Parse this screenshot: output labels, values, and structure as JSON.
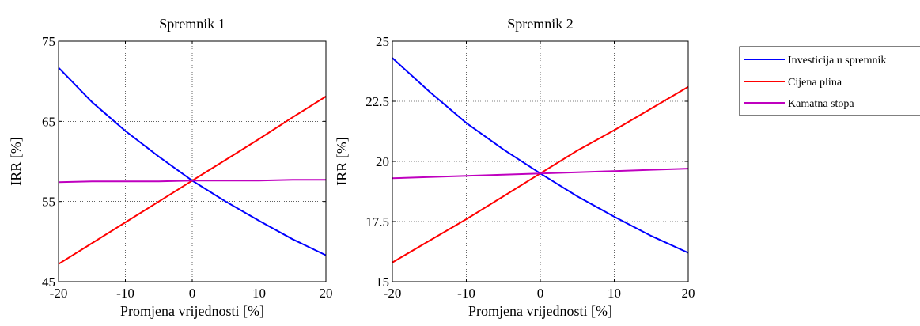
{
  "chart_data": [
    {
      "type": "line",
      "title": "Spremnik 1",
      "xlabel": "Promjena vrijednosti [%]",
      "ylabel": "IRR [%]",
      "xlim": [
        -20,
        20
      ],
      "ylim": [
        45,
        75
      ],
      "x_ticks": [
        -20,
        -10,
        0,
        10,
        20
      ],
      "y_ticks": [
        45,
        55,
        65,
        75
      ],
      "x_tick_labels": [
        "-20",
        "-10",
        "0",
        "10",
        "20"
      ],
      "y_tick_labels": [
        "45",
        "55",
        "65",
        "75"
      ],
      "grid": true,
      "x": [
        -20,
        -15,
        -10,
        -5,
        0,
        5,
        10,
        15,
        20
      ],
      "series": [
        {
          "name": "Investicija u spremnik",
          "color": "#0000ff",
          "values": [
            71.7,
            67.4,
            63.8,
            60.6,
            57.6,
            55.0,
            52.6,
            50.3,
            48.3
          ]
        },
        {
          "name": "Cijena plina",
          "color": "#ff0000",
          "values": [
            47.2,
            49.8,
            52.4,
            55.0,
            57.6,
            60.2,
            62.8,
            65.5,
            68.1
          ]
        },
        {
          "name": "Kamatna stopa",
          "color": "#bf00bf",
          "values": [
            57.4,
            57.5,
            57.5,
            57.5,
            57.6,
            57.6,
            57.6,
            57.7,
            57.7
          ]
        }
      ]
    },
    {
      "type": "line",
      "title": "Spremnik 2",
      "xlabel": "Promjena vrijednosti [%]",
      "ylabel": "IRR [%]",
      "xlim": [
        -20,
        20
      ],
      "ylim": [
        15,
        25
      ],
      "x_ticks": [
        -20,
        -10,
        0,
        10,
        20
      ],
      "y_ticks": [
        15,
        17.5,
        20,
        22.5,
        25
      ],
      "x_tick_labels": [
        "-20",
        "-10",
        "0",
        "10",
        "20"
      ],
      "y_tick_labels": [
        "15",
        "17.5",
        "20",
        "22.5",
        "25"
      ],
      "grid": true,
      "x": [
        -20,
        -15,
        -10,
        -5,
        0,
        5,
        10,
        15,
        20
      ],
      "series": [
        {
          "name": "Investicija u spremnik",
          "color": "#0000ff",
          "values": [
            24.3,
            22.9,
            21.6,
            20.5,
            19.5,
            18.55,
            17.7,
            16.9,
            16.2
          ]
        },
        {
          "name": "Cijena plina",
          "color": "#ff0000",
          "values": [
            15.8,
            16.7,
            17.6,
            18.55,
            19.5,
            20.45,
            21.3,
            22.2,
            23.1
          ]
        },
        {
          "name": "Kamatna stopa",
          "color": "#bf00bf",
          "values": [
            19.3,
            19.35,
            19.4,
            19.45,
            19.5,
            19.55,
            19.6,
            19.65,
            19.7
          ]
        }
      ]
    }
  ],
  "legend": {
    "placement": "right",
    "entries": [
      {
        "label": "Investicija u spremnik",
        "color": "#0000ff"
      },
      {
        "label": "Cijena plina",
        "color": "#ff0000"
      },
      {
        "label": "Kamatna stopa",
        "color": "#bf00bf"
      }
    ]
  }
}
